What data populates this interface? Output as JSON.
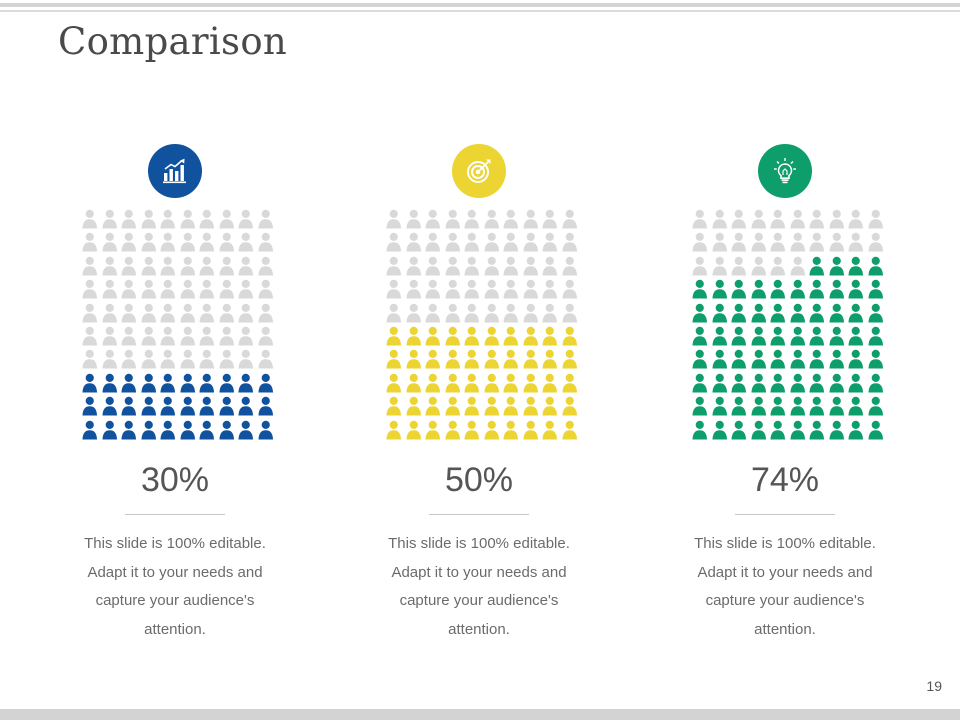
{
  "slide": {
    "title": "Comparison",
    "page_number": "19"
  },
  "colors": {
    "empty": "#d9d9d9",
    "blue": "#10529d",
    "yellow": "#ecd432",
    "green": "#0e9e6b"
  },
  "columns": [
    {
      "icon": "bar-chart-growth-icon",
      "color": "#10529d",
      "percent_value": 30,
      "percent_label": "30%",
      "description": "This slide is 100% editable. Adapt it to your needs and capture your audience's attention."
    },
    {
      "icon": "target-icon",
      "color": "#ecd432",
      "percent_value": 50,
      "percent_label": "50%",
      "description": "This slide is 100% editable. Adapt it to your needs and capture your audience's attention."
    },
    {
      "icon": "lightbulb-icon",
      "color": "#0e9e6b",
      "percent_value": 74,
      "percent_label": "74%",
      "description": "This slide is 100% editable. Adapt it to your needs and capture your audience's attention."
    }
  ]
}
